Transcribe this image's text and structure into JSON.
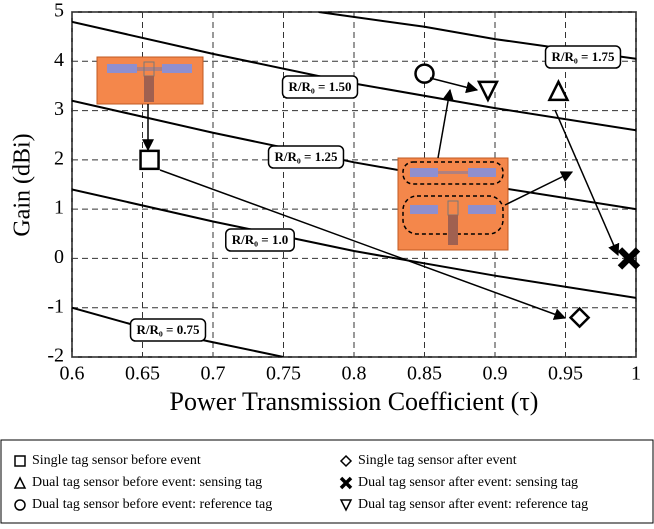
{
  "chart_data": {
    "type": "scatter",
    "xlabel": "Power Transmission Coefficient (τ)",
    "ylabel": "Gain (dBi)",
    "xlim": [
      0.6,
      1.0
    ],
    "ylim": [
      -2,
      5
    ],
    "xticks": [
      0.6,
      0.65,
      0.7,
      0.75,
      0.8,
      0.85,
      0.9,
      0.95,
      1
    ],
    "yticks": [
      -2,
      -1,
      0,
      1,
      2,
      3,
      4,
      5
    ],
    "grid": true,
    "series": [
      {
        "name": "Single tag sensor before event",
        "marker": "square",
        "color": "#000000",
        "x": [
          0.655
        ],
        "values": [
          2
        ]
      },
      {
        "name": "Single tag sensor after event",
        "marker": "diamond",
        "color": "#000000",
        "x": [
          0.96
        ],
        "values": [
          -1.2
        ]
      },
      {
        "name": "Dual tag sensor before event: sensing tag",
        "marker": "triangle",
        "color": "#000000",
        "x": [
          0.945
        ],
        "values": [
          3.4
        ]
      },
      {
        "name": "Dual tag sensor after event: sensing tag",
        "marker": "x",
        "color": "#000000",
        "x": [
          0.995
        ],
        "values": [
          0
        ]
      },
      {
        "name": "Dual tag sensor before event: reference tag",
        "marker": "circle",
        "color": "#000000",
        "x": [
          0.85
        ],
        "values": [
          3.75
        ]
      },
      {
        "name": "Dual tag sensor after event: reference tag",
        "marker": "triangle-down",
        "color": "#000000",
        "x": [
          0.895
        ],
        "values": [
          3.4
        ]
      }
    ],
    "curves": [
      {
        "label": "R/R₀ = 1.75",
        "x": [
          0.775,
          0.85,
          0.9,
          0.95,
          1.0
        ],
        "values": [
          5,
          4.7,
          4.45,
          4.25,
          4.05
        ]
      },
      {
        "label": "R/R₀ = 1.50",
        "x": [
          0.6,
          0.7,
          0.8,
          0.9,
          1.0
        ],
        "values": [
          4.8,
          4.15,
          3.55,
          3.05,
          2.6
        ]
      },
      {
        "label": "R/R₀ = 1.25",
        "x": [
          0.6,
          0.7,
          0.8,
          0.9,
          1.0
        ],
        "values": [
          3.2,
          2.55,
          1.95,
          1.45,
          1.0
        ]
      },
      {
        "label": "R/R₀ = 1.0",
        "x": [
          0.6,
          0.7,
          0.8,
          0.9,
          1.0
        ],
        "values": [
          1.4,
          0.75,
          0.15,
          -0.35,
          -0.8
        ]
      },
      {
        "label": "R/R₀ = 0.75",
        "x": [
          0.6,
          0.65,
          0.7,
          0.75
        ],
        "values": [
          -1.0,
          -1.4,
          -1.7,
          -2.0
        ]
      }
    ]
  }
}
